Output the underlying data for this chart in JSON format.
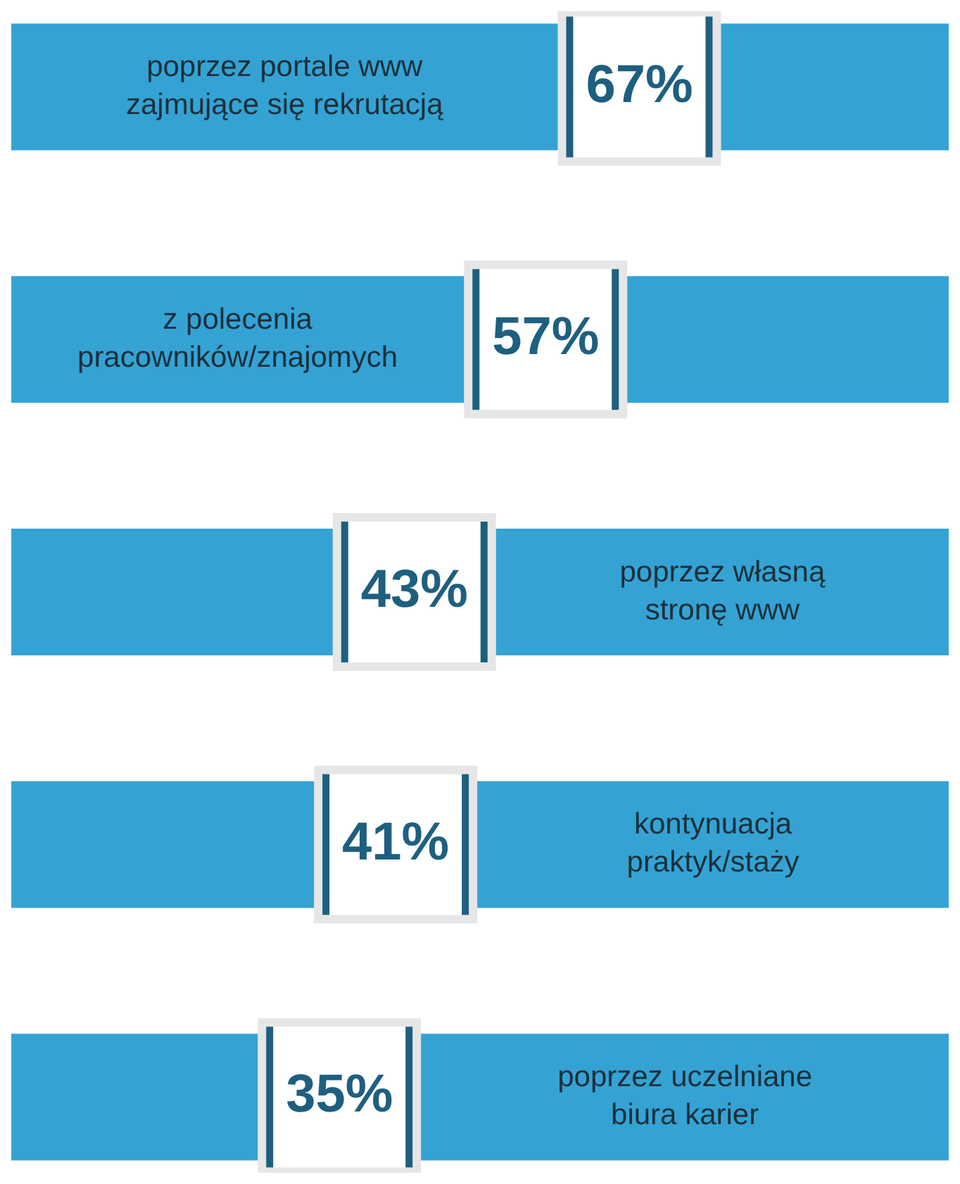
{
  "chart_data": {
    "type": "other",
    "categories": [
      "poprzez portale www zajmujące się rekrutacją",
      "z polecenia pracowników/znajomych",
      "poprzez własną stronę www",
      "kontynuacja praktyk/staży",
      "poprzez uczelniane biura karier"
    ],
    "values": [
      67,
      57,
      43,
      41,
      35
    ],
    "value_labels": [
      "67%",
      "57%",
      "43%",
      "41%",
      "35%"
    ]
  }
}
